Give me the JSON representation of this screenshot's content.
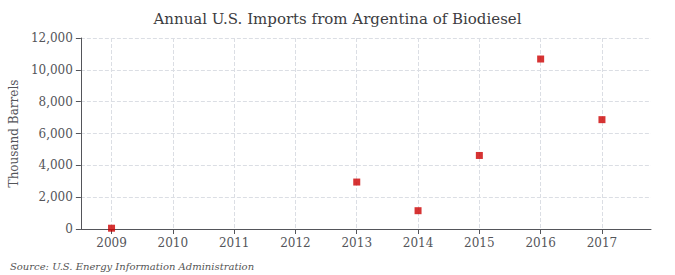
{
  "chart_data": {
    "type": "scatter",
    "title": "Annual U.S. Imports from Argentina of Biodiesel",
    "ylabel": "Thousand Barrels",
    "source": "Source: U.S. Energy Information Administration",
    "x": [
      2009,
      2010,
      2011,
      2012,
      2013,
      2014,
      2015,
      2016,
      2017
    ],
    "values": [
      50,
      null,
      null,
      null,
      2950,
      1150,
      4620,
      10680,
      6870
    ],
    "xlim": [
      2008.5,
      2017.8
    ],
    "xticks": [
      2009,
      2010,
      2011,
      2012,
      2013,
      2014,
      2015,
      2016,
      2017
    ],
    "ylim": [
      0,
      12000
    ],
    "yticks": [
      0,
      {
        "value": 2000,
        "label": "2,000"
      },
      {
        "value": 4000,
        "label": "4,000"
      },
      {
        "value": 6000,
        "label": "6,000"
      },
      {
        "value": 8000,
        "label": "8,000"
      },
      {
        "value": 10000,
        "label": "10,000"
      },
      {
        "value": 12000,
        "label": "12,000"
      }
    ],
    "color": "#cc0000",
    "marker": "square",
    "grid": true
  }
}
